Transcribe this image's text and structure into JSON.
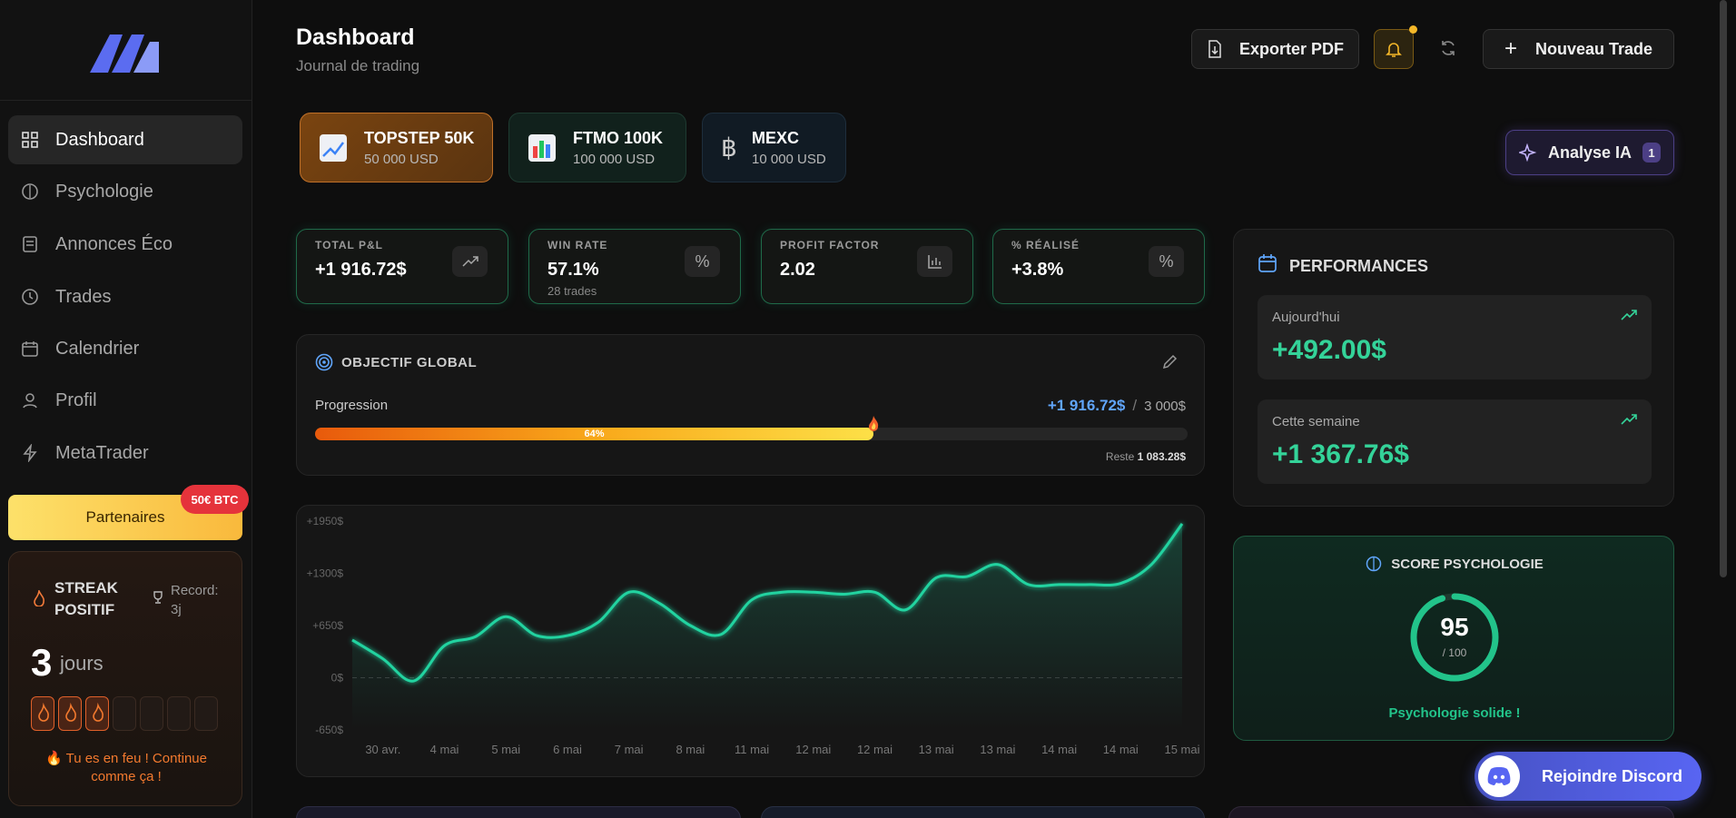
{
  "sidebar": {
    "nav": [
      "Dashboard",
      "Psychologie",
      "Annonces Éco",
      "Trades",
      "Calendrier",
      "Profil",
      "MetaTrader"
    ],
    "partners": {
      "label": "Partenaires",
      "badge": "50€ BTC"
    },
    "streak": {
      "title_1": "STREAK",
      "title_2": "POSITIF",
      "record_1": "Record:",
      "record_2": "3j",
      "days": 3,
      "unit": "jours",
      "message_1": "🔥 Tu es en feu ! Continue",
      "message_2": "comme ça !"
    }
  },
  "header": {
    "title": "Dashboard",
    "subtitle": "Journal de trading",
    "export": "Exporter PDF",
    "new_trade": "Nouveau Trade"
  },
  "accounts": [
    {
      "name": "TOPSTEP 50K",
      "balance": "50 000 USD"
    },
    {
      "name": "FTMO 100K",
      "balance": "100 000 USD"
    },
    {
      "name": "MEXC",
      "balance": "10 000 USD"
    }
  ],
  "analyse": {
    "label": "Analyse IA",
    "count": "1"
  },
  "kpis": [
    {
      "label": "TOTAL P&L",
      "value": "+1 916.72$"
    },
    {
      "label": "WIN RATE",
      "value": "57.1%",
      "sub": "28 trades"
    },
    {
      "label": "PROFIT FACTOR",
      "value": "2.02"
    },
    {
      "label": "% RÉALISÉ",
      "value": "+3.8%"
    }
  ],
  "objective": {
    "title": "OBJECTIF GLOBAL",
    "label": "Progression",
    "current": "+1 916.72$",
    "separator": "/",
    "target": "3 000$",
    "progress": {
      "value": 64,
      "label": "64%"
    },
    "remaining_label": "Reste",
    "remaining": "1 083.28$"
  },
  "performances": {
    "title": "PERFORMANCES",
    "today_label": "Aujourd'hui",
    "today": "+492.00$",
    "week_label": "Cette semaine",
    "week": "+1 367.76$"
  },
  "psychology": {
    "title": "SCORE PSYCHOLOGIE",
    "score": 95,
    "max": {
      "value": 100,
      "label": "/ 100"
    },
    "message": "Psychologie solide !"
  },
  "discord": "Rejoindre Discord",
  "chart_data": {
    "type": "line",
    "categories": [
      null,
      "30 avr.",
      null,
      "4 mai",
      null,
      "5 mai",
      null,
      "6 mai",
      null,
      "7 mai",
      null,
      "8 mai",
      null,
      "11 mai",
      null,
      "12 mai",
      null,
      "12 mai",
      null,
      "13 mai",
      null,
      "13 mai",
      null,
      "14 mai",
      null,
      "14 mai",
      null,
      "15 mai"
    ],
    "values": [
      470,
      235,
      -40,
      400,
      510,
      760,
      525,
      525,
      690,
      1065,
      925,
      650,
      540,
      970,
      1065,
      1065,
      1040,
      1065,
      845,
      1245,
      1260,
      1410,
      1160,
      1160,
      1160,
      1175,
      1410,
      1917
    ],
    "color": "#22d3a0",
    "ylim": [
      -650,
      1950
    ],
    "yticks": [
      {
        "value": 1950,
        "label": "+1950$"
      },
      {
        "value": 1300,
        "label": "+1300$"
      },
      {
        "value": 650,
        "label": "+650$"
      },
      {
        "value": 0,
        "label": "0$"
      },
      {
        "value": -650,
        "label": "-650$"
      }
    ],
    "grid": false
  }
}
